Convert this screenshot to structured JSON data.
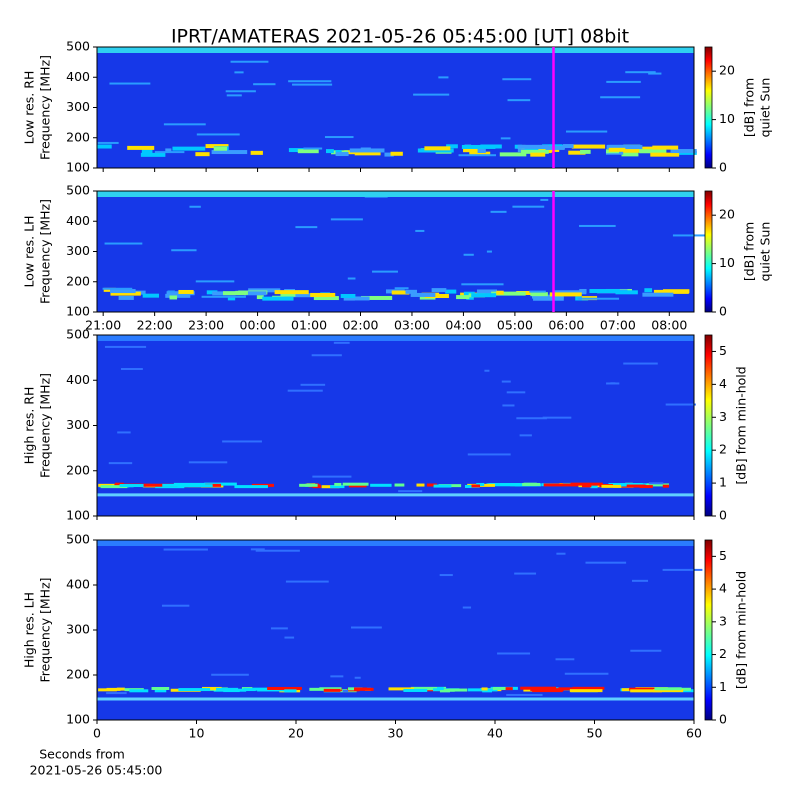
{
  "title": "IPRT/AMATERAS 2021-05-26 05:45:00 [UT]   08bit",
  "chart_data": [
    {
      "type": "heatmap",
      "ylabel": [
        "Low res. RH",
        "Frequency [MHz]"
      ],
      "ylim": [
        100,
        500
      ],
      "yticks": [
        100,
        200,
        300,
        400,
        500
      ],
      "xlim": [
        20.88,
        32.48
      ],
      "xticks": [
        21,
        22,
        23,
        24,
        25,
        26,
        27,
        28,
        29,
        30,
        31,
        32
      ],
      "colorbar": {
        "label": [
          "[dB] from",
          "quiet Sun"
        ],
        "lim": [
          0,
          25
        ],
        "ticks": [
          0,
          10,
          20
        ]
      },
      "marker_x": 29.75,
      "marker_color": "#ff00ff"
    },
    {
      "type": "heatmap",
      "ylabel": [
        "Low res. LH",
        "Frequency [MHz]"
      ],
      "ylim": [
        100,
        500
      ],
      "yticks": [
        100,
        200,
        300,
        400,
        500
      ],
      "xlim": [
        20.88,
        32.48
      ],
      "xticks": [
        {
          "value": 21,
          "label": "21:00"
        },
        {
          "value": 22,
          "label": "22:00"
        },
        {
          "value": 23,
          "label": "23:00"
        },
        {
          "value": 24,
          "label": "00:00"
        },
        {
          "value": 25,
          "label": "01:00"
        },
        {
          "value": 26,
          "label": "02:00"
        },
        {
          "value": 27,
          "label": "03:00"
        },
        {
          "value": 28,
          "label": "04:00"
        },
        {
          "value": 29,
          "label": "05:00"
        },
        {
          "value": 30,
          "label": "06:00"
        },
        {
          "value": 31,
          "label": "07:00"
        },
        {
          "value": 32,
          "label": "08:00"
        }
      ],
      "colorbar": {
        "label": [
          "[dB] from",
          "quiet Sun"
        ],
        "lim": [
          0,
          25
        ],
        "ticks": [
          0,
          10,
          20
        ]
      },
      "marker_x": 29.75,
      "marker_color": "#ff00ff"
    },
    {
      "type": "heatmap",
      "ylabel": [
        "High res. RH",
        "Frequency [MHz]"
      ],
      "ylim": [
        100,
        500
      ],
      "yticks": [
        100,
        200,
        300,
        400,
        500
      ],
      "xlim": [
        0,
        60
      ],
      "xticks": [
        0,
        10,
        20,
        30,
        40,
        50,
        60
      ],
      "colorbar": {
        "label": [
          "[dB] from min-hold"
        ],
        "lim": [
          0,
          5.5
        ],
        "ticks": [
          0,
          1,
          2,
          3,
          4,
          5
        ]
      }
    },
    {
      "type": "heatmap",
      "ylabel": [
        "High res. LH",
        "Frequency [MHz]"
      ],
      "ylim": [
        100,
        500
      ],
      "yticks": [
        100,
        200,
        300,
        400,
        500
      ],
      "xlim": [
        0,
        60
      ],
      "xticks": [
        0,
        10,
        20,
        30,
        40,
        50,
        60
      ],
      "xlabel": [
        "Seconds from",
        "2021-05-26 05:45:00"
      ],
      "colorbar": {
        "label": [
          "[dB] from min-hold"
        ],
        "lim": [
          0,
          5.5
        ],
        "ticks": [
          0,
          1,
          2,
          3,
          4,
          5
        ]
      }
    }
  ]
}
